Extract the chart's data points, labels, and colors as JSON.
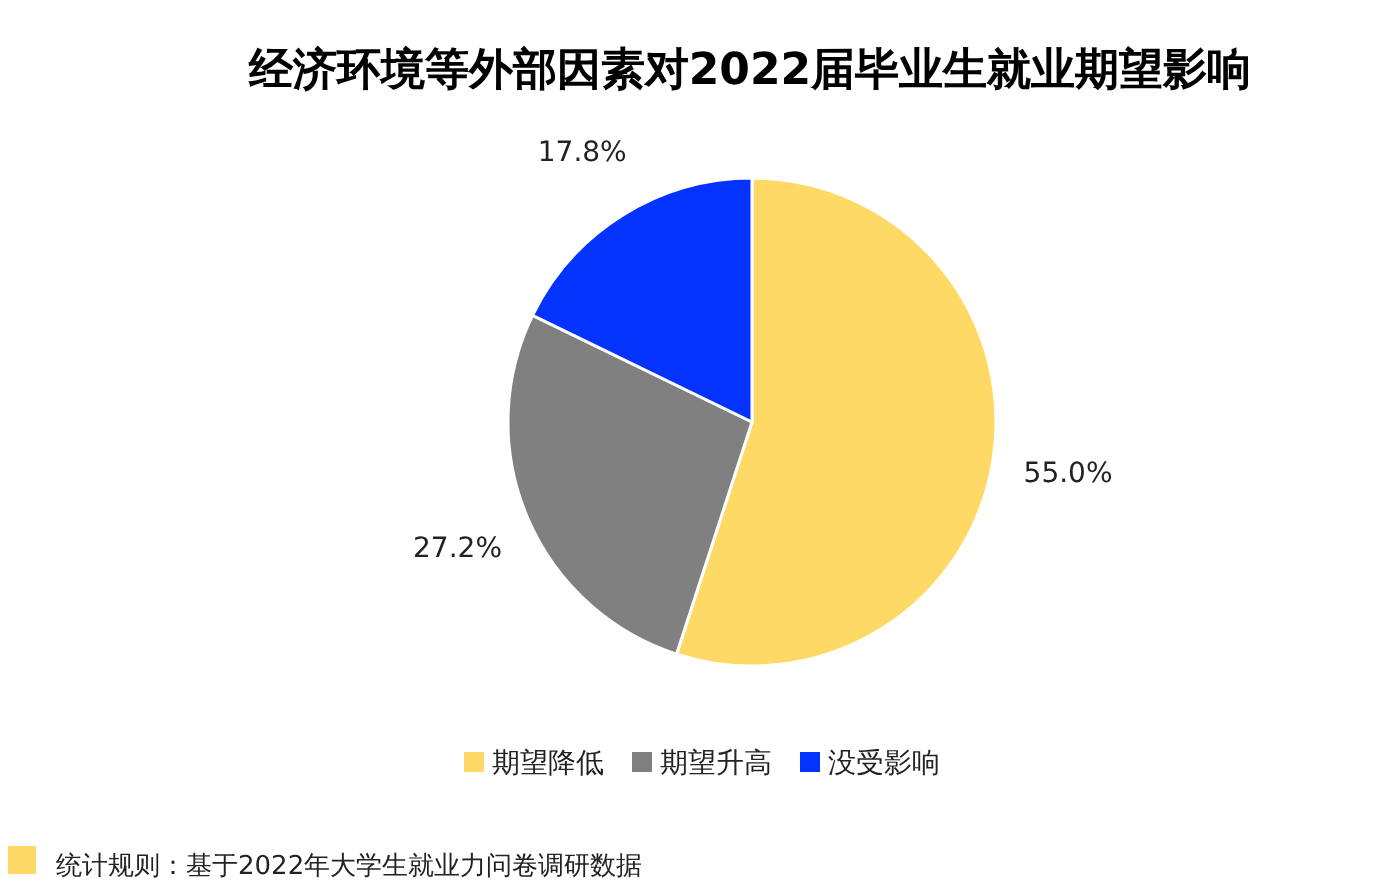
{
  "chart_data": {
    "type": "pie",
    "title": "经济环境等外部因素对2022届毕业生就业期望影响",
    "categories": [
      "期望降低",
      "期望升高",
      "没受影响"
    ],
    "values": [
      55.0,
      27.2,
      17.8
    ],
    "colors": [
      "#ffd966",
      "#808080",
      "#0433ff"
    ],
    "value_labels": [
      "55.0%",
      "27.2%",
      "17.8%"
    ],
    "legend": "bottom",
    "annotations": [
      "统计规则：基于2022年大学生就业力问卷调研数据"
    ]
  }
}
